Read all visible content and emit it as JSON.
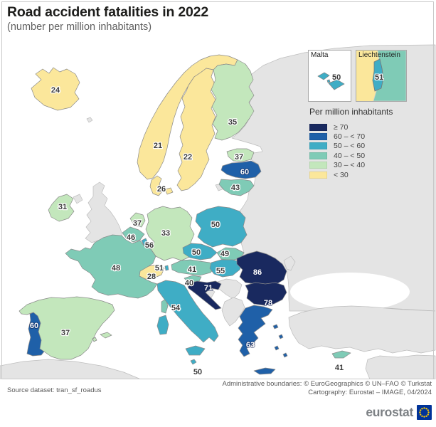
{
  "page": {
    "title": "Road accident fatalities in 2022",
    "subtitle": "(number per million inhabitants)"
  },
  "legend": {
    "title": "Per million inhabitants",
    "no_data_color": "#e4e4e4",
    "classes": [
      {
        "label": "≥ 70",
        "color": "#19295f"
      },
      {
        "label": "60 – < 70",
        "color": "#1f60a8"
      },
      {
        "label": "50 – < 60",
        "color": "#3fadc5"
      },
      {
        "label": "40 – < 50",
        "color": "#7fcbb6"
      },
      {
        "label": "30 – < 40",
        "color": "#c3e7bc"
      },
      {
        "label": "< 30",
        "color": "#fbe79b"
      }
    ]
  },
  "insets": [
    {
      "name": "Malta",
      "value": 50,
      "class_index": 2
    },
    {
      "name": "Liechtenstein",
      "value": 51,
      "class_index": 2
    }
  ],
  "map_data": {
    "type": "choropleth",
    "year": "2022",
    "unit": "per million inhabitants",
    "countries": [
      {
        "code": "IS",
        "name": "Iceland",
        "value": 24,
        "class_index": 5
      },
      {
        "code": "NO",
        "name": "Norway",
        "value": 21,
        "class_index": 5
      },
      {
        "code": "SE",
        "name": "Sweden",
        "value": 22,
        "class_index": 5
      },
      {
        "code": "FI",
        "name": "Finland",
        "value": 35,
        "class_index": 4
      },
      {
        "code": "EE",
        "name": "Estonia",
        "value": 37,
        "class_index": 4
      },
      {
        "code": "LV",
        "name": "Latvia",
        "value": 60,
        "class_index": 1
      },
      {
        "code": "LT",
        "name": "Lithuania",
        "value": 43,
        "class_index": 3
      },
      {
        "code": "DK",
        "name": "Denmark",
        "value": 26,
        "class_index": 5
      },
      {
        "code": "IE",
        "name": "Ireland",
        "value": 31,
        "class_index": 4
      },
      {
        "code": "NL",
        "name": "Netherlands",
        "value": 37,
        "class_index": 4
      },
      {
        "code": "BE",
        "name": "Belgium",
        "value": 46,
        "class_index": 3
      },
      {
        "code": "LU",
        "name": "Luxembourg",
        "value": 56,
        "class_index": 2
      },
      {
        "code": "DE",
        "name": "Germany",
        "value": 33,
        "class_index": 4
      },
      {
        "code": "PL",
        "name": "Poland",
        "value": 50,
        "class_index": 2
      },
      {
        "code": "CZ",
        "name": "Czechia",
        "value": 50,
        "class_index": 2
      },
      {
        "code": "SK",
        "name": "Slovakia",
        "value": 49,
        "class_index": 3
      },
      {
        "code": "AT",
        "name": "Austria",
        "value": 41,
        "class_index": 3
      },
      {
        "code": "CH",
        "name": "Switzerland",
        "value": 28,
        "class_index": 5
      },
      {
        "code": "LI",
        "name": "Liechtenstein",
        "value": 51,
        "class_index": 2
      },
      {
        "code": "FR",
        "name": "France",
        "value": 48,
        "class_index": 3
      },
      {
        "code": "ES",
        "name": "Spain",
        "value": 37,
        "class_index": 4
      },
      {
        "code": "PT",
        "name": "Portugal",
        "value": 60,
        "class_index": 1
      },
      {
        "code": "IT",
        "name": "Italy",
        "value": 54,
        "class_index": 2
      },
      {
        "code": "SI",
        "name": "Slovenia",
        "value": 40,
        "class_index": 3
      },
      {
        "code": "HR",
        "name": "Croatia",
        "value": 71,
        "class_index": 0
      },
      {
        "code": "HU",
        "name": "Hungary",
        "value": 55,
        "class_index": 2
      },
      {
        "code": "RO",
        "name": "Romania",
        "value": 86,
        "class_index": 0
      },
      {
        "code": "BG",
        "name": "Bulgaria",
        "value": 78,
        "class_index": 0
      },
      {
        "code": "GR",
        "name": "Greece",
        "value": 63,
        "class_index": 1
      },
      {
        "code": "CY",
        "name": "Cyprus",
        "value": 41,
        "class_index": 3
      },
      {
        "code": "MT",
        "name": "Malta",
        "value": 50,
        "class_index": 2
      }
    ]
  },
  "footer": {
    "source": "Source dataset: tran_sf_roadus",
    "attribution_line1": "Administrative boundaries: © EuroGeographics © UN–FAO © Turkstat",
    "attribution_line2": "Cartography: Eurostat – IMAGE, 04/2024",
    "logo_text": "eurostat",
    "logo_flag_color": "#003399",
    "logo_star_color": "#FFCC00"
  }
}
